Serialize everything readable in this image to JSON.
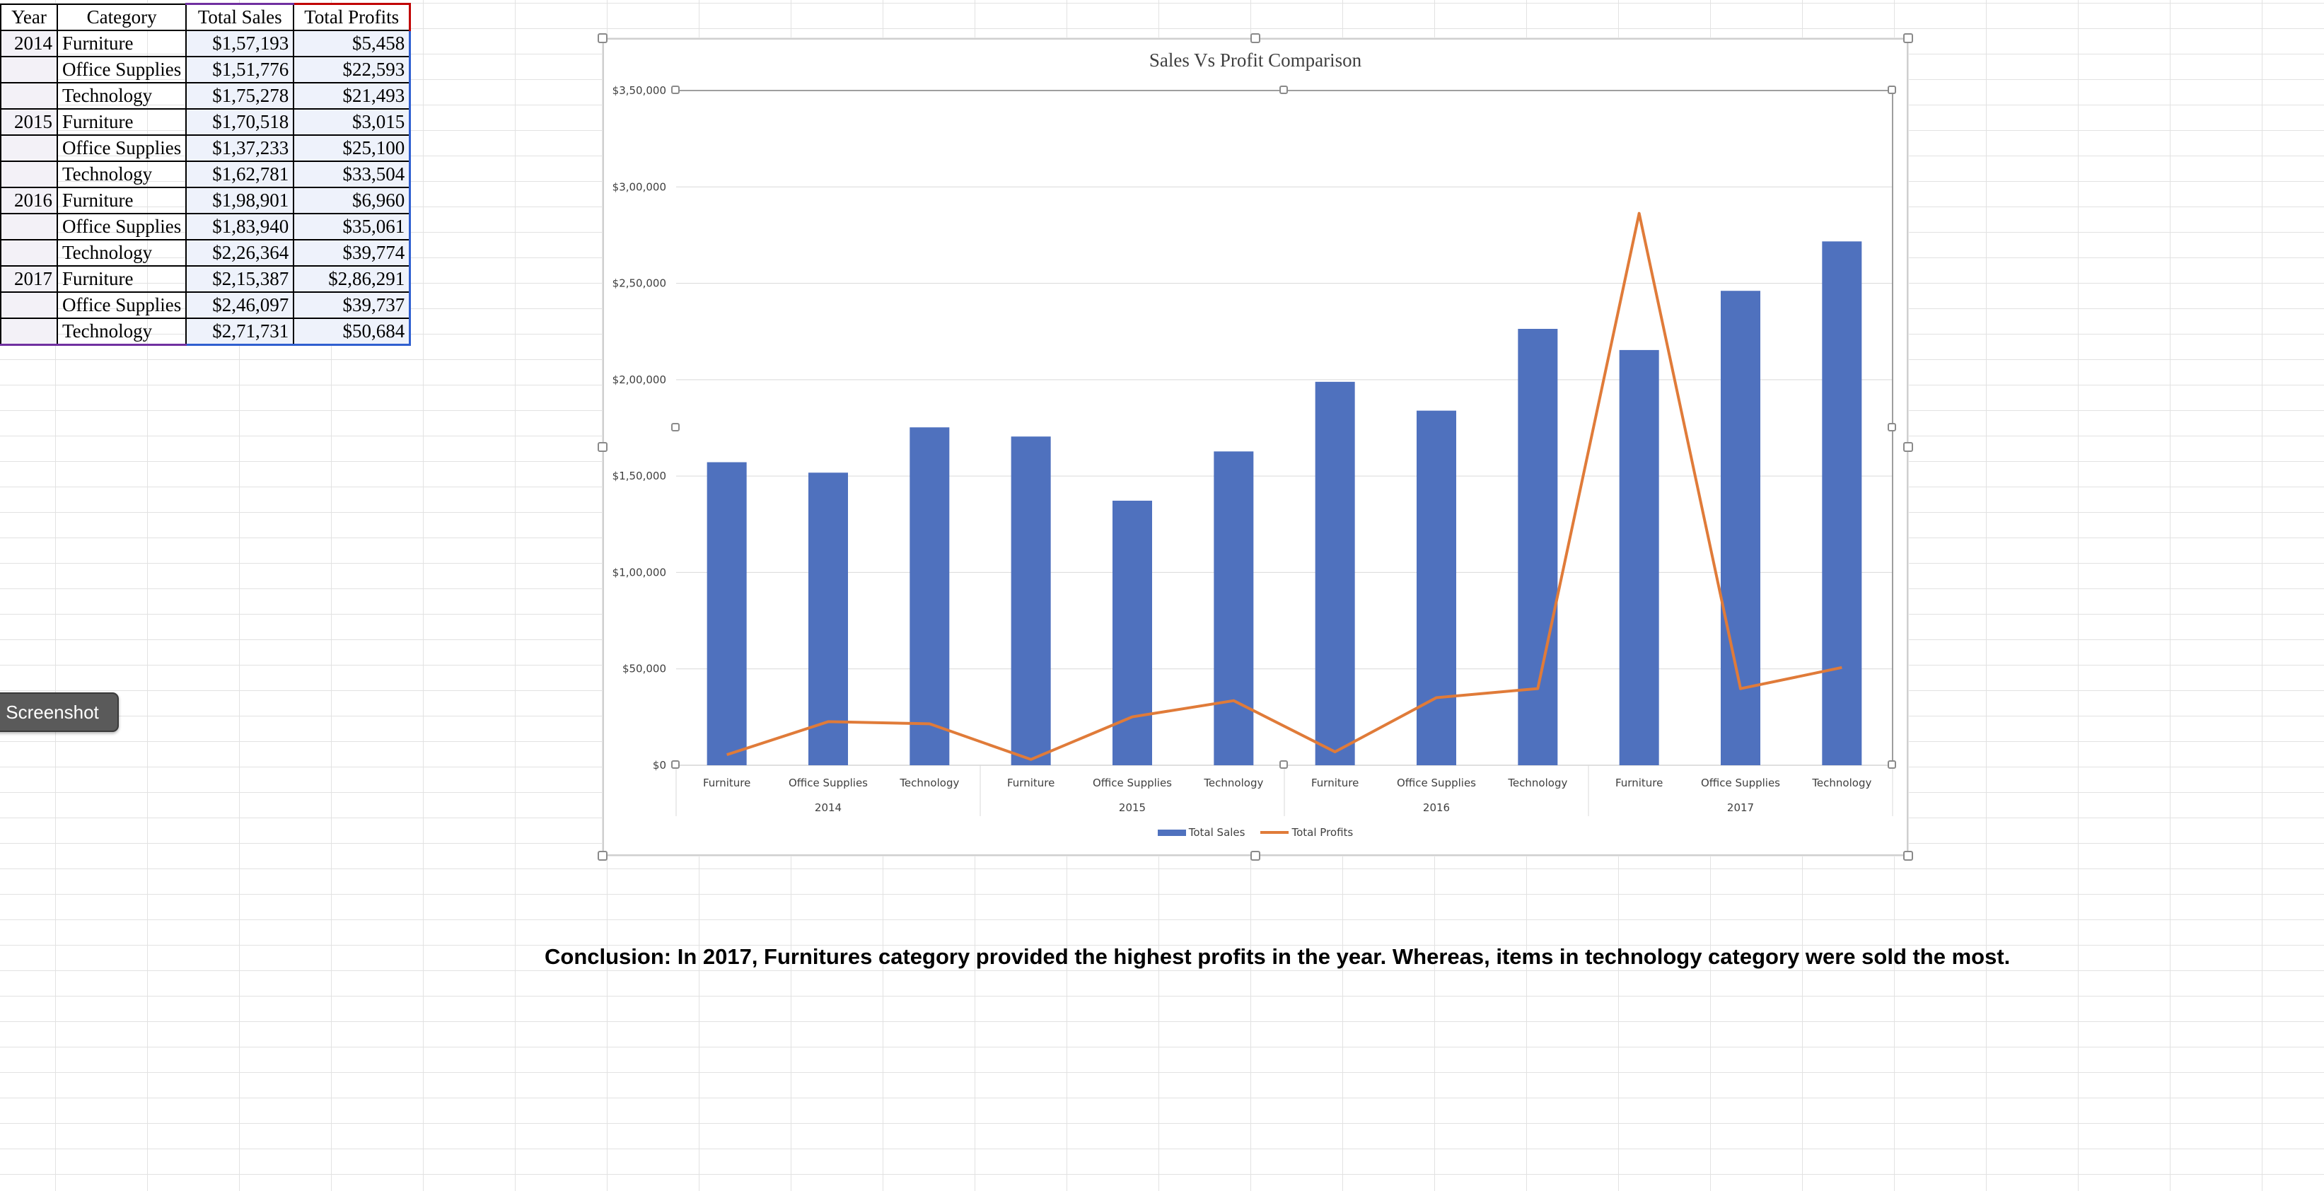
{
  "table": {
    "headers": [
      "Year",
      "Category",
      "Total Sales",
      "Total Profits"
    ],
    "rows": [
      {
        "year": "2014",
        "category": "Furniture",
        "sales": "$1,57,193",
        "profits": "$5,458"
      },
      {
        "year": "",
        "category": "Office Supplies",
        "sales": "$1,51,776",
        "profits": "$22,593"
      },
      {
        "year": "",
        "category": "Technology",
        "sales": "$1,75,278",
        "profits": "$21,493"
      },
      {
        "year": "2015",
        "category": "Furniture",
        "sales": "$1,70,518",
        "profits": "$3,015"
      },
      {
        "year": "",
        "category": "Office Supplies",
        "sales": "$1,37,233",
        "profits": "$25,100"
      },
      {
        "year": "",
        "category": "Technology",
        "sales": "$1,62,781",
        "profits": "$33,504"
      },
      {
        "year": "2016",
        "category": "Furniture",
        "sales": "$1,98,901",
        "profits": "$6,960"
      },
      {
        "year": "",
        "category": "Office Supplies",
        "sales": "$1,83,940",
        "profits": "$35,061"
      },
      {
        "year": "",
        "category": "Technology",
        "sales": "$2,26,364",
        "profits": "$39,774"
      },
      {
        "year": "2017",
        "category": "Furniture",
        "sales": "$2,15,387",
        "profits": "$2,86,291"
      },
      {
        "year": "",
        "category": "Office Supplies",
        "sales": "$2,46,097",
        "profits": "$39,737"
      },
      {
        "year": "",
        "category": "Technology",
        "sales": "$2,71,731",
        "profits": "$50,684"
      }
    ]
  },
  "screenshot_button": {
    "label": "Screenshot"
  },
  "chart_data": {
    "type": "bar",
    "title": "Sales Vs Profit Comparison",
    "categories": [
      "Furniture",
      "Office Supplies",
      "Technology",
      "Furniture",
      "Office Supplies",
      "Technology",
      "Furniture",
      "Office Supplies",
      "Technology",
      "Furniture",
      "Office Supplies",
      "Technology"
    ],
    "groups": [
      "2014",
      "2015",
      "2016",
      "2017"
    ],
    "series": [
      {
        "name": "Total Sales",
        "type": "bar",
        "color": "#4f71be",
        "values": [
          157193,
          151776,
          175278,
          170518,
          137233,
          162781,
          198901,
          183940,
          226364,
          215387,
          246097,
          271731
        ]
      },
      {
        "name": "Total Profits",
        "type": "line",
        "color": "#e07b39",
        "values": [
          5458,
          22593,
          21493,
          3015,
          25100,
          33504,
          6960,
          35061,
          39774,
          286291,
          39737,
          50684
        ]
      }
    ],
    "y_ticks": [
      "$0",
      "$50,000",
      "$1,00,000",
      "$1,50,000",
      "$2,00,000",
      "$2,50,000",
      "$3,00,000",
      "$3,50,000"
    ],
    "ylim": [
      0,
      350000
    ],
    "legend_position": "bottom",
    "grid": true
  },
  "conclusion": {
    "text": "Conclusion: In 2017, Furnitures category provided the highest profits in the year.  Whereas, items in technology category were sold the most."
  }
}
